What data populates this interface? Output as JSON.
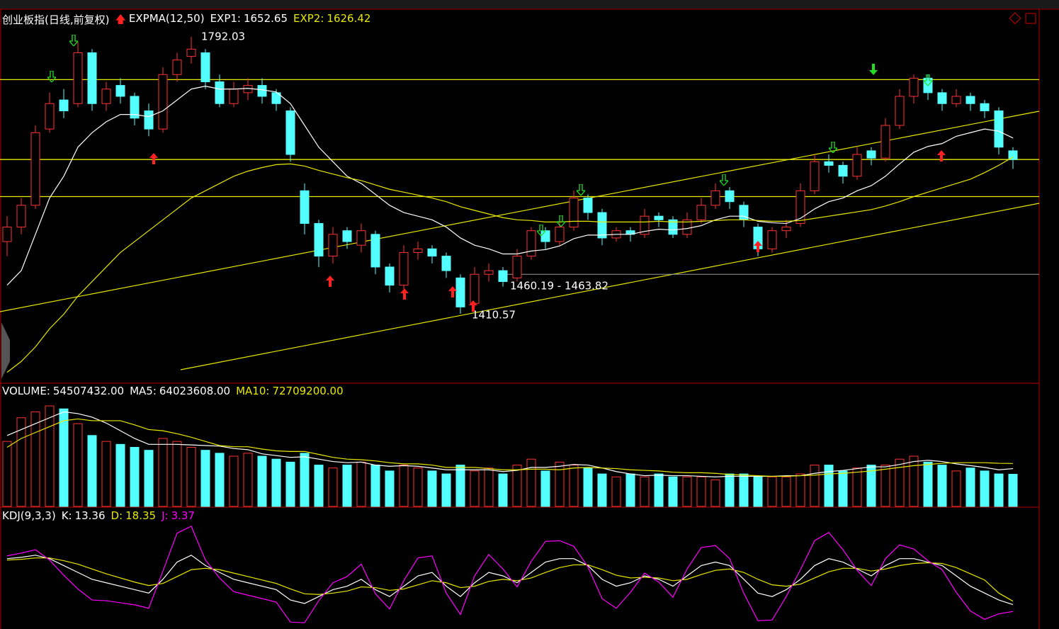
{
  "chart_data": [
    {
      "type": "candlestick",
      "title": "创业板指(日线,前复权)",
      "indicator": "EXPMA(12,50)",
      "ylim": [
        1316,
        1828
      ],
      "up_color": "#ff3232",
      "down_color": "#54ffff",
      "levels": [
        1733,
        1623,
        1572
      ],
      "level_color": "#e8e800",
      "gray_level": 1465,
      "candles": [
        [
          1510,
          1545,
          1490,
          1530
        ],
        [
          1530,
          1570,
          1520,
          1560
        ],
        [
          1560,
          1670,
          1555,
          1660
        ],
        [
          1665,
          1715,
          1660,
          1700
        ],
        [
          1705,
          1720,
          1680,
          1690
        ],
        [
          1700,
          1785,
          1695,
          1770
        ],
        [
          1770,
          1775,
          1690,
          1700
        ],
        [
          1700,
          1730,
          1690,
          1720
        ],
        [
          1725,
          1735,
          1700,
          1710
        ],
        [
          1710,
          1715,
          1670,
          1680
        ],
        [
          1690,
          1700,
          1655,
          1665
        ],
        [
          1665,
          1750,
          1660,
          1740
        ],
        [
          1740,
          1770,
          1730,
          1760
        ],
        [
          1765,
          1792.03,
          1755,
          1775
        ],
        [
          1770,
          1775,
          1720,
          1730
        ],
        [
          1730,
          1740,
          1695,
          1700
        ],
        [
          1700,
          1730,
          1695,
          1720
        ],
        [
          1715,
          1735,
          1705,
          1725
        ],
        [
          1725,
          1735,
          1700,
          1710
        ],
        [
          1715,
          1720,
          1690,
          1700
        ],
        [
          1690,
          1695,
          1620,
          1630
        ],
        [
          1580,
          1590,
          1520,
          1535
        ],
        [
          1535,
          1540,
          1475,
          1490
        ],
        [
          1490,
          1530,
          1480,
          1520
        ],
        [
          1525,
          1530,
          1500,
          1510
        ],
        [
          1505,
          1535,
          1495,
          1525
        ],
        [
          1520,
          1525,
          1465,
          1475
        ],
        [
          1475,
          1480,
          1440,
          1450
        ],
        [
          1450,
          1505,
          1445,
          1495
        ],
        [
          1495,
          1510,
          1485,
          1500
        ],
        [
          1500,
          1505,
          1480,
          1490
        ],
        [
          1490,
          1495,
          1460,
          1470
        ],
        [
          1460,
          1465,
          1410.57,
          1420
        ],
        [
          1425,
          1475,
          1420,
          1465
        ],
        [
          1465,
          1480,
          1455,
          1470
        ],
        [
          1470,
          1475,
          1448,
          1455
        ],
        [
          1460,
          1500,
          1455,
          1490
        ],
        [
          1490,
          1530,
          1485,
          1525
        ],
        [
          1525,
          1530,
          1500,
          1510
        ],
        [
          1510,
          1540,
          1505,
          1530
        ],
        [
          1530,
          1580,
          1525,
          1570
        ],
        [
          1570,
          1575,
          1540,
          1550
        ],
        [
          1550,
          1555,
          1505,
          1515
        ],
        [
          1515,
          1530,
          1510,
          1525
        ],
        [
          1525,
          1530,
          1510,
          1520
        ],
        [
          1520,
          1555,
          1515,
          1545
        ],
        [
          1545,
          1550,
          1530,
          1540
        ],
        [
          1540,
          1545,
          1515,
          1520
        ],
        [
          1520,
          1550,
          1515,
          1540
        ],
        [
          1540,
          1570,
          1535,
          1560
        ],
        [
          1560,
          1590,
          1555,
          1580
        ],
        [
          1580,
          1585,
          1555,
          1565
        ],
        [
          1560,
          1565,
          1530,
          1540
        ],
        [
          1530,
          1535,
          1490,
          1500
        ],
        [
          1500,
          1530,
          1495,
          1525
        ],
        [
          1525,
          1540,
          1515,
          1530
        ],
        [
          1535,
          1590,
          1530,
          1580
        ],
        [
          1580,
          1630,
          1575,
          1620
        ],
        [
          1620,
          1630,
          1605,
          1615
        ],
        [
          1615,
          1620,
          1590,
          1600
        ],
        [
          1600,
          1640,
          1595,
          1630
        ],
        [
          1635,
          1640,
          1615,
          1625
        ],
        [
          1625,
          1680,
          1620,
          1670
        ],
        [
          1670,
          1720,
          1665,
          1710
        ],
        [
          1710,
          1740,
          1700,
          1735
        ],
        [
          1735,
          1740,
          1705,
          1715
        ],
        [
          1715,
          1720,
          1690,
          1700
        ],
        [
          1700,
          1720,
          1695,
          1710
        ],
        [
          1710,
          1715,
          1690,
          1700
        ],
        [
          1700,
          1705,
          1680,
          1690
        ],
        [
          1690,
          1695,
          1630,
          1640
        ],
        [
          1635,
          1640,
          1610,
          1623
        ]
      ],
      "series": [
        {
          "name": "EXP1:",
          "color": "#ffffff",
          "values": [
            1450,
            1470,
            1520,
            1570,
            1600,
            1640,
            1660,
            1675,
            1685,
            1685,
            1682,
            1690,
            1705,
            1720,
            1724,
            1720,
            1720,
            1721,
            1719,
            1716,
            1700,
            1670,
            1640,
            1620,
            1600,
            1590,
            1575,
            1560,
            1550,
            1545,
            1540,
            1530,
            1515,
            1505,
            1500,
            1493,
            1493,
            1497,
            1499,
            1504,
            1514,
            1519,
            1519,
            1520,
            1520,
            1524,
            1527,
            1526,
            1528,
            1532,
            1540,
            1545,
            1545,
            1538,
            1536,
            1535,
            1542,
            1555,
            1565,
            1570,
            1580,
            1587,
            1600,
            1617,
            1633,
            1641,
            1645,
            1655,
            1660,
            1665,
            1662,
            1652.65
          ]
        },
        {
          "name": "EXP2:",
          "color": "#e8e800",
          "values": [
            1330,
            1345,
            1365,
            1390,
            1410,
            1435,
            1455,
            1475,
            1495,
            1510,
            1525,
            1540,
            1555,
            1570,
            1580,
            1590,
            1600,
            1607,
            1612,
            1616,
            1617,
            1614,
            1608,
            1603,
            1598,
            1594,
            1588,
            1582,
            1578,
            1574,
            1570,
            1565,
            1558,
            1553,
            1548,
            1543,
            1540,
            1539,
            1537,
            1537,
            1538,
            1538,
            1537,
            1537,
            1537,
            1537,
            1538,
            1537,
            1537,
            1538,
            1539,
            1540,
            1540,
            1539,
            1538,
            1538,
            1539,
            1542,
            1545,
            1548,
            1551,
            1554,
            1559,
            1565,
            1572,
            1578,
            1584,
            1590,
            1596,
            1605,
            1615,
            1626.42
          ]
        }
      ],
      "annotations": [
        "1460.19 - 1463.82"
      ]
    },
    {
      "type": "bar",
      "ylim": [
        0,
        200000000
      ],
      "series": [
        {
          "name": "VOLUME:",
          "style": "bar",
          "color": "#54ffff",
          "last_label": "54507432.00",
          "values": [
            110000000,
            150000000,
            160000000,
            170000000,
            165000000,
            140000000,
            120000000,
            110000000,
            105000000,
            100000000,
            95000000,
            115000000,
            110000000,
            100000000,
            95000000,
            90000000,
            85000000,
            90000000,
            85000000,
            80000000,
            75000000,
            90000000,
            70000000,
            65000000,
            70000000,
            75000000,
            70000000,
            60000000,
            70000000,
            65000000,
            60000000,
            55000000,
            70000000,
            60000000,
            65000000,
            55000000,
            70000000,
            80000000,
            60000000,
            75000000,
            70000000,
            65000000,
            55000000,
            50000000,
            55000000,
            50000000,
            55000000,
            50000000,
            50000000,
            50000000,
            45000000,
            55000000,
            55000000,
            50000000,
            50000000,
            50000000,
            55000000,
            70000000,
            70000000,
            60000000,
            65000000,
            70000000,
            70000000,
            80000000,
            85000000,
            75000000,
            70000000,
            60000000,
            65000000,
            60000000,
            55000000,
            54507432
          ]
        },
        {
          "name": "MA5:",
          "style": "line",
          "color": "#ffffff",
          "last_label": "64023608.00",
          "values": [
            120000000,
            130000000,
            140000000,
            150000000,
            160000000,
            157000000,
            151000000,
            141000000,
            128000000,
            115000000,
            105000000,
            105000000,
            105000000,
            104000000,
            103000000,
            102000000,
            98000000,
            96000000,
            89000000,
            86000000,
            83000000,
            84000000,
            80000000,
            76000000,
            74000000,
            75000000,
            70000000,
            68000000,
            69000000,
            68000000,
            65000000,
            62000000,
            62000000,
            62000000,
            62000000,
            59000000,
            61000000,
            66000000,
            66000000,
            68000000,
            71000000,
            70000000,
            65000000,
            59000000,
            55000000,
            52000000,
            53000000,
            52000000,
            52000000,
            51000000,
            50000000,
            51000000,
            51000000,
            51000000,
            51000000,
            52000000,
            52000000,
            56000000,
            59000000,
            61000000,
            64000000,
            67000000,
            67000000,
            71000000,
            76000000,
            78000000,
            76000000,
            72000000,
            69000000,
            66000000,
            62000000,
            64023608
          ]
        },
        {
          "name": "MA10:",
          "style": "line",
          "color": "#e8e800",
          "last_label": "72709200.00",
          "values": [
            100000000,
            115000000,
            125000000,
            135000000,
            145000000,
            148000000,
            145000000,
            145000000,
            145000000,
            138000000,
            130000000,
            128000000,
            123000000,
            117000000,
            110000000,
            103000000,
            101000000,
            101000000,
            97000000,
            94000000,
            93000000,
            93000000,
            88000000,
            83000000,
            80000000,
            79000000,
            77000000,
            74000000,
            72000000,
            72000000,
            70000000,
            66000000,
            66000000,
            66000000,
            64000000,
            62000000,
            62000000,
            63000000,
            63000000,
            62000000,
            65000000,
            66000000,
            65000000,
            64000000,
            62000000,
            61000000,
            60000000,
            58000000,
            57000000,
            57000000,
            56000000,
            54000000,
            53000000,
            52000000,
            51000000,
            51000000,
            52000000,
            53000000,
            55000000,
            56000000,
            58000000,
            60000000,
            63000000,
            66000000,
            69000000,
            71000000,
            73000000,
            74000000,
            74000000,
            74000000,
            73000000,
            72709200
          ]
        }
      ]
    },
    {
      "type": "line",
      "title": "KDJ(9,3,3)",
      "ylim": [
        -20,
        130
      ],
      "series": [
        {
          "name": "K:",
          "color": "#ffffff",
          "values": [
            80,
            82,
            85,
            80,
            70,
            60,
            50,
            45,
            40,
            35,
            30,
            50,
            75,
            85,
            70,
            60,
            50,
            45,
            40,
            35,
            20,
            15,
            25,
            35,
            40,
            50,
            35,
            25,
            40,
            55,
            60,
            40,
            25,
            45,
            60,
            55,
            45,
            60,
            75,
            80,
            80,
            70,
            50,
            40,
            45,
            55,
            50,
            40,
            55,
            70,
            75,
            70,
            50,
            30,
            25,
            35,
            50,
            70,
            80,
            75,
            65,
            55,
            70,
            80,
            80,
            75,
            70,
            55,
            40,
            30,
            20,
            13.36
          ]
        },
        {
          "name": "D:",
          "color": "#e8e800",
          "values": [
            78,
            79,
            81,
            81,
            77,
            72,
            65,
            58,
            52,
            46,
            41,
            44,
            54,
            64,
            66,
            64,
            59,
            54,
            49,
            44,
            36,
            29,
            28,
            30,
            33,
            39,
            38,
            34,
            36,
            42,
            48,
            45,
            38,
            40,
            47,
            50,
            48,
            52,
            60,
            67,
            71,
            71,
            64,
            56,
            52,
            53,
            52,
            48,
            50,
            57,
            63,
            65,
            60,
            50,
            42,
            40,
            43,
            52,
            61,
            66,
            66,
            62,
            65,
            70,
            73,
            74,
            73,
            67,
            58,
            49,
            30,
            18.35
          ]
        },
        {
          "name": "J:",
          "color": "#ff00ff",
          "values": [
            84,
            88,
            93,
            78,
            56,
            36,
            20,
            19,
            16,
            13,
            8,
            62,
            117,
            127,
            78,
            52,
            32,
            27,
            22,
            17,
            -12,
            -13,
            19,
            45,
            54,
            72,
            29,
            7,
            48,
            81,
            84,
            30,
            -1,
            55,
            86,
            65,
            39,
            76,
            105,
            106,
            98,
            68,
            22,
            8,
            31,
            59,
            46,
            24,
            65,
            96,
            99,
            80,
            30,
            -10,
            -9,
            25,
            64,
            106,
            118,
            93,
            63,
            41,
            80,
            100,
            94,
            77,
            64,
            31,
            4,
            -8,
            0,
            3.37
          ]
        }
      ]
    }
  ]
}
